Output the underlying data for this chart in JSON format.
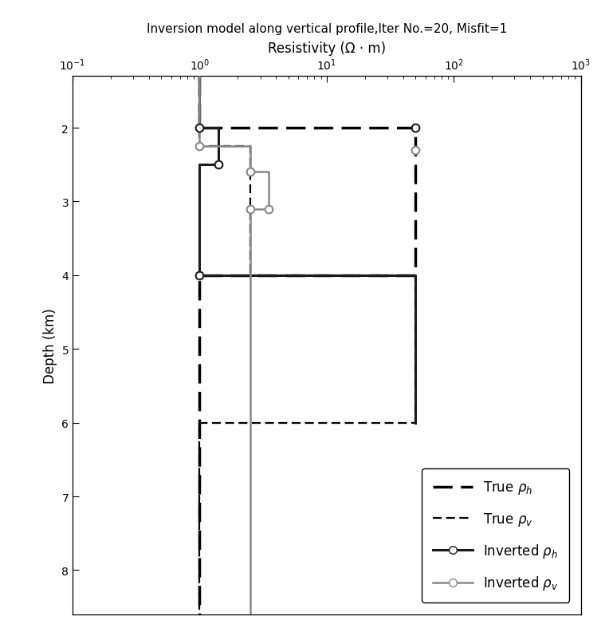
{
  "title": "Inversion model along vertical profile,Iter No.=20, Misfit=1",
  "xlabel": "Resistivity (Ω · m)",
  "ylabel": "Depth (km)",
  "xlim": [
    0.1,
    1000
  ],
  "ylim": [
    8.6,
    1.3
  ],
  "yticks": [
    2,
    3,
    4,
    5,
    6,
    7,
    8
  ],
  "true_rh_x": [
    1.0,
    1.0,
    50.0,
    50.0,
    1.0,
    1.0
  ],
  "true_rh_y": [
    1.3,
    2.0,
    2.0,
    4.0,
    4.0,
    8.6
  ],
  "true_rv_x": [
    1.0,
    1.0,
    2.5,
    2.5,
    50.0,
    50.0,
    1.0,
    1.0
  ],
  "true_rv_y": [
    1.3,
    2.25,
    2.25,
    4.0,
    4.0,
    6.0,
    6.0,
    8.6
  ],
  "inv_rh_x": [
    1.0,
    1.0,
    1.4,
    1.4,
    1.0,
    1.0,
    50.0,
    50.0
  ],
  "inv_rh_y": [
    1.3,
    2.0,
    2.0,
    2.5,
    2.5,
    4.0,
    4.0,
    6.0
  ],
  "inv_rh_mx": [
    1.0,
    1.4,
    1.0,
    50.0
  ],
  "inv_rh_my": [
    2.0,
    2.5,
    4.0,
    2.0
  ],
  "inv_rv_x": [
    1.0,
    1.0,
    2.5,
    2.5,
    3.5,
    3.5,
    2.5,
    2.5
  ],
  "inv_rv_y": [
    1.3,
    2.25,
    2.25,
    2.6,
    2.6,
    3.1,
    3.1,
    8.6
  ],
  "inv_rv_mx": [
    1.0,
    2.5,
    3.5,
    2.5,
    50.0
  ],
  "inv_rv_my": [
    2.25,
    2.6,
    3.1,
    3.1,
    2.3
  ],
  "color_true_rh": "#000000",
  "color_true_rv": "#000000",
  "color_inv_rh": "#1a1a1a",
  "color_inv_rv": "#888888",
  "lw_true_rh": 2.5,
  "lw_true_rv": 1.6,
  "lw_inv_rh": 2.2,
  "lw_inv_rv": 1.8
}
